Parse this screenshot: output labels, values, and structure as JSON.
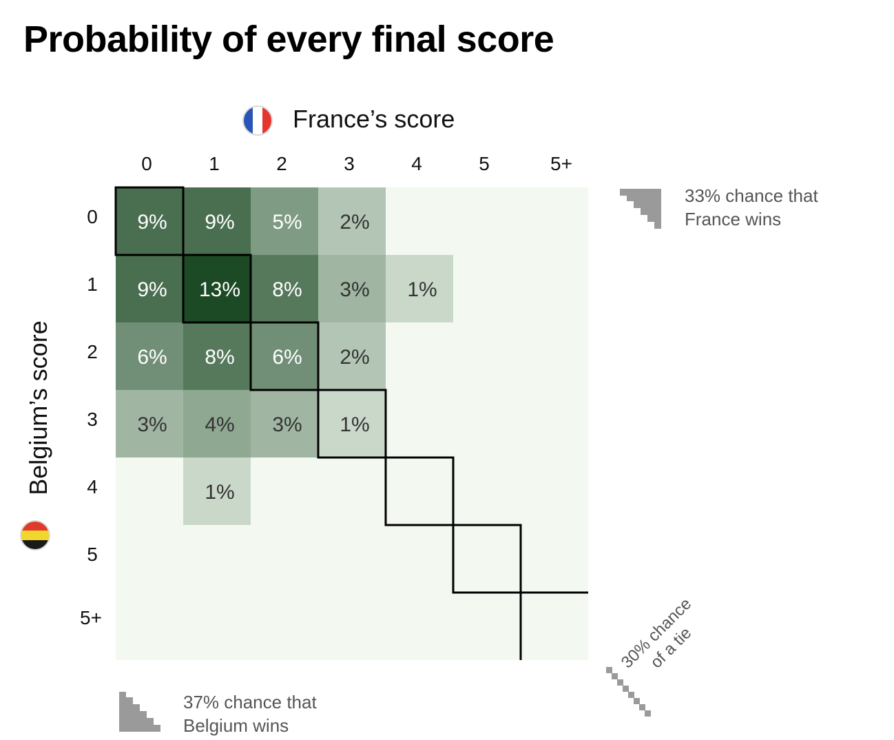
{
  "title": "Probability of every final score",
  "flags": {
    "france": "france-flag-icon",
    "belgium": "belgium-flag-icon"
  },
  "colors": {
    "france_blue": "#2a55b8",
    "france_red": "#e4362f",
    "belgium_black": "#1a1a1a",
    "belgium_yellow": "#f3d62c",
    "belgium_red": "#e03a2b",
    "background_cell": "#f3f9f1",
    "max_cell": "#1c4a25",
    "outline": "#000000",
    "note_icon": "#9a9a9a"
  },
  "chart_data": {
    "type": "heatmap",
    "title": "Probability of every final score",
    "xlabel": "France’s score",
    "ylabel": "Belgium’s score",
    "x_categories": [
      "0",
      "1",
      "2",
      "3",
      "4",
      "5",
      "5+"
    ],
    "y_categories": [
      "0",
      "1",
      "2",
      "3",
      "4",
      "5",
      "5+"
    ],
    "values": [
      [
        9,
        9,
        5,
        2,
        null,
        null,
        null
      ],
      [
        9,
        13,
        8,
        3,
        1,
        null,
        null
      ],
      [
        6,
        8,
        6,
        2,
        null,
        null,
        null
      ],
      [
        3,
        4,
        3,
        1,
        null,
        null,
        null
      ],
      [
        null,
        1,
        null,
        null,
        null,
        null,
        null
      ],
      [
        null,
        null,
        null,
        null,
        null,
        null,
        null
      ],
      [
        null,
        null,
        null,
        null,
        null,
        null,
        null
      ]
    ],
    "value_suffix": "%",
    "tie_cells_outlined": true,
    "annotations": {
      "france_wins": "33% chance that\nFrance wins",
      "belgium_wins": "37% chance that\nBelgium wins",
      "tie": "30% chance\nof a tie"
    }
  }
}
